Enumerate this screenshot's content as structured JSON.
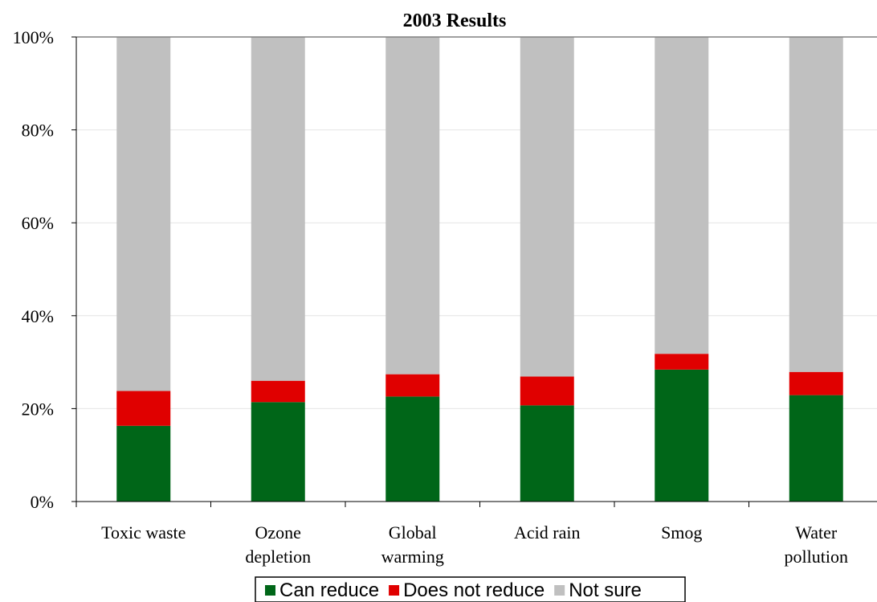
{
  "chart_data": {
    "type": "bar",
    "stacked": true,
    "percent_stacked": true,
    "title": "2003 Results",
    "categories": [
      [
        "Toxic waste"
      ],
      [
        "Ozone",
        "depletion"
      ],
      [
        "Global",
        "warming"
      ],
      [
        "Acid rain"
      ],
      [
        "Smog"
      ],
      [
        "Water",
        "pollution"
      ]
    ],
    "series": [
      {
        "name": "Can reduce",
        "color": "#006618",
        "values": [
          16.3,
          21.4,
          22.6,
          20.7,
          28.4,
          22.9
        ]
      },
      {
        "name": "Does not reduce",
        "color": "#e00000",
        "values": [
          7.5,
          4.6,
          4.8,
          6.2,
          3.4,
          5.0
        ]
      },
      {
        "name": "Not sure",
        "color": "#c0c0c0",
        "values": [
          76.2,
          74.0,
          72.6,
          73.1,
          68.2,
          72.1
        ]
      }
    ],
    "ylim": [
      0,
      100
    ],
    "yticks": [
      "0%",
      "20%",
      "40%",
      "60%",
      "80%",
      "100%"
    ],
    "grid": true,
    "legend_position": "bottom"
  }
}
